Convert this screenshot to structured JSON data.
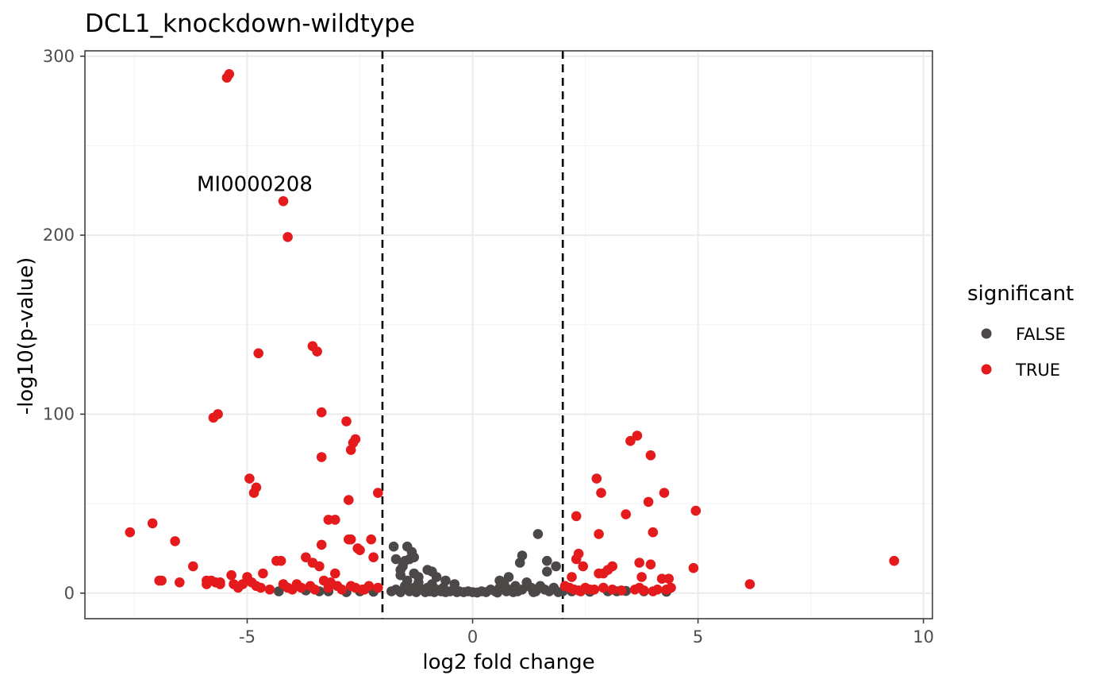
{
  "chart_data": {
    "type": "scatter",
    "title": "DCL1_knockdown-wildtype",
    "xlabel": "log2 fold change",
    "ylabel": "-log10(p-value)",
    "xlim": [
      -8.6,
      10.2
    ],
    "ylim": [
      -14.3,
      303
    ],
    "x_ticks": [
      -5,
      0,
      5,
      10
    ],
    "y_ticks": [
      0,
      100,
      200,
      300
    ],
    "grid": true,
    "vlines": [
      -2,
      2
    ],
    "legend": {
      "title": "significant",
      "position": "right",
      "entries": [
        {
          "label": "FALSE",
          "color": "#4d4848"
        },
        {
          "label": "TRUE",
          "color": "#e41a1c"
        }
      ]
    },
    "annotations": [
      {
        "text": "MI0000208",
        "x": -4.2,
        "y": 219
      }
    ],
    "series": [
      {
        "name": "FALSE",
        "color": "#4d4848",
        "points": [
          [
            -1.8,
            1
          ],
          [
            -1.7,
            2
          ],
          [
            -1.6,
            0.5
          ],
          [
            -1.5,
            4
          ],
          [
            -1.45,
            7
          ],
          [
            -1.4,
            1
          ],
          [
            -1.3,
            3
          ],
          [
            -1.25,
            0.5
          ],
          [
            -1.2,
            6
          ],
          [
            -1.1,
            2
          ],
          [
            -1.05,
            0.5
          ],
          [
            -1.0,
            3
          ],
          [
            -0.95,
            1
          ],
          [
            -0.9,
            5
          ],
          [
            -0.85,
            0.5
          ],
          [
            -0.8,
            2
          ],
          [
            -0.7,
            1
          ],
          [
            -0.65,
            3
          ],
          [
            -0.6,
            0.5
          ],
          [
            -0.5,
            1
          ],
          [
            -0.4,
            2
          ],
          [
            -0.35,
            0.5
          ],
          [
            -0.3,
            1
          ],
          [
            -0.2,
            0.5
          ],
          [
            -0.1,
            1
          ],
          [
            0,
            0.5
          ],
          [
            0.1,
            0.3
          ],
          [
            0.2,
            1
          ],
          [
            0.3,
            0.5
          ],
          [
            0.4,
            2
          ],
          [
            0.5,
            1
          ],
          [
            0.55,
            0.3
          ],
          [
            0.6,
            3
          ],
          [
            0.7,
            5
          ],
          [
            0.75,
            1
          ],
          [
            0.8,
            2
          ],
          [
            0.9,
            0.5
          ],
          [
            0.95,
            4
          ],
          [
            1.0,
            1
          ],
          [
            1.1,
            2
          ],
          [
            1.2,
            6
          ],
          [
            1.3,
            3
          ],
          [
            1.35,
            0.5
          ],
          [
            1.4,
            1
          ],
          [
            1.5,
            4
          ],
          [
            1.6,
            2
          ],
          [
            1.7,
            1
          ],
          [
            1.8,
            3
          ],
          [
            1.9,
            0.5
          ],
          [
            2.0,
            1
          ],
          [
            -1.45,
            26
          ],
          [
            -1.35,
            23
          ],
          [
            -1.5,
            18
          ],
          [
            -1.4,
            19
          ],
          [
            -1.3,
            20
          ],
          [
            -1.55,
            15
          ],
          [
            -1.6,
            13
          ],
          [
            -1.3,
            11
          ],
          [
            -1.2,
            9
          ],
          [
            -1.0,
            13
          ],
          [
            -0.9,
            12
          ],
          [
            -0.8,
            9
          ],
          [
            -0.6,
            7
          ],
          [
            -0.4,
            5
          ],
          [
            -1.75,
            26
          ],
          [
            -1.7,
            19
          ],
          [
            -1.6,
            10
          ],
          [
            1.1,
            21
          ],
          [
            1.05,
            17
          ],
          [
            0.8,
            9
          ],
          [
            0.6,
            7
          ],
          [
            1.45,
            33
          ],
          [
            1.65,
            18
          ],
          [
            1.85,
            15
          ],
          [
            1.65,
            12
          ],
          [
            -4.3,
            1
          ],
          [
            -3.7,
            1.5
          ],
          [
            -3.4,
            1
          ],
          [
            -3.2,
            1
          ],
          [
            -2.8,
            0.5
          ],
          [
            -2.5,
            1
          ],
          [
            -2.2,
            0.8
          ],
          [
            2.2,
            1
          ],
          [
            2.6,
            0.8
          ],
          [
            3.0,
            1
          ],
          [
            3.4,
            1.2
          ],
          [
            3.8,
            1
          ],
          [
            4.3,
            0.8
          ],
          [
            3.2,
            1
          ]
        ]
      },
      {
        "name": "TRUE",
        "color": "#e41a1c",
        "points": [
          [
            -5.4,
            290
          ],
          [
            -5.45,
            288
          ],
          [
            -4.2,
            219
          ],
          [
            -4.1,
            199
          ],
          [
            -3.55,
            138
          ],
          [
            -3.45,
            135
          ],
          [
            -4.75,
            134
          ],
          [
            -3.35,
            101
          ],
          [
            -5.65,
            100
          ],
          [
            -5.75,
            98
          ],
          [
            -2.8,
            96
          ],
          [
            -2.6,
            86
          ],
          [
            -2.65,
            84
          ],
          [
            -2.7,
            80
          ],
          [
            -3.35,
            76
          ],
          [
            -4.95,
            64
          ],
          [
            -4.8,
            59
          ],
          [
            -4.85,
            56
          ],
          [
            -2.1,
            56
          ],
          [
            -2.75,
            52
          ],
          [
            -3.2,
            41
          ],
          [
            -3.05,
            41
          ],
          [
            -3.35,
            27
          ],
          [
            -7.6,
            34
          ],
          [
            -7.1,
            39
          ],
          [
            -6.6,
            29
          ],
          [
            -2.5,
            24
          ],
          [
            -2.55,
            25
          ],
          [
            -2.7,
            30
          ],
          [
            -2.75,
            30
          ],
          [
            -2.25,
            30
          ],
          [
            -2.2,
            20
          ],
          [
            -3.7,
            20
          ],
          [
            -4.25,
            18
          ],
          [
            -4.35,
            18
          ],
          [
            -3.55,
            17
          ],
          [
            -3.4,
            15
          ],
          [
            -3.05,
            11
          ],
          [
            -6.2,
            15
          ],
          [
            -5.35,
            10
          ],
          [
            -5.0,
            9
          ],
          [
            -4.65,
            11
          ],
          [
            -6.9,
            7
          ],
          [
            -6.5,
            6
          ],
          [
            -5.9,
            7
          ],
          [
            -5.8,
            7
          ],
          [
            -5.7,
            6
          ],
          [
            -5.6,
            6
          ],
          [
            -5.3,
            5
          ],
          [
            -5.1,
            5
          ],
          [
            -4.9,
            6
          ],
          [
            -4.8,
            4
          ],
          [
            -4.2,
            5
          ],
          [
            -3.9,
            5
          ],
          [
            -3.6,
            4
          ],
          [
            -3.3,
            7
          ],
          [
            -3.0,
            4
          ],
          [
            -2.6,
            3
          ],
          [
            -2.3,
            4
          ],
          [
            -5.9,
            5
          ],
          [
            -5.2,
            3
          ],
          [
            -4.7,
            3
          ],
          [
            -4.5,
            2
          ],
          [
            -4.0,
            2
          ],
          [
            -3.8,
            3
          ],
          [
            -3.5,
            2
          ],
          [
            -3.2,
            3
          ],
          [
            -2.9,
            2
          ],
          [
            -2.4,
            2
          ],
          [
            -2.1,
            3
          ],
          [
            -6.95,
            7
          ],
          [
            -5.6,
            5
          ],
          [
            -4.1,
            3
          ],
          [
            -3.15,
            6
          ],
          [
            -2.7,
            4
          ],
          [
            -2.45,
            2
          ],
          [
            3.65,
            88
          ],
          [
            3.5,
            85
          ],
          [
            3.95,
            77
          ],
          [
            2.75,
            64
          ],
          [
            2.85,
            56
          ],
          [
            4.25,
            56
          ],
          [
            3.9,
            51
          ],
          [
            4.95,
            46
          ],
          [
            2.3,
            43
          ],
          [
            3.4,
            44
          ],
          [
            4.0,
            34
          ],
          [
            2.8,
            33
          ],
          [
            2.35,
            22
          ],
          [
            2.3,
            19
          ],
          [
            3.1,
            15
          ],
          [
            3.0,
            13
          ],
          [
            3.7,
            17
          ],
          [
            3.95,
            16
          ],
          [
            4.9,
            14
          ],
          [
            2.45,
            15
          ],
          [
            2.2,
            9
          ],
          [
            2.8,
            11
          ],
          [
            2.9,
            11
          ],
          [
            3.75,
            9
          ],
          [
            4.2,
            8
          ],
          [
            4.35,
            8
          ],
          [
            9.35,
            18
          ],
          [
            6.15,
            5
          ],
          [
            2.15,
            3
          ],
          [
            2.25,
            2
          ],
          [
            2.5,
            3
          ],
          [
            2.7,
            2
          ],
          [
            2.9,
            3
          ],
          [
            3.1,
            2
          ],
          [
            3.3,
            1.5
          ],
          [
            3.6,
            2
          ],
          [
            3.8,
            1.5
          ],
          [
            4.0,
            1
          ],
          [
            4.3,
            2
          ],
          [
            4.4,
            3
          ],
          [
            2.4,
            1
          ],
          [
            2.6,
            2
          ],
          [
            3.7,
            3
          ],
          [
            4.1,
            2
          ],
          [
            2.05,
            4
          ],
          [
            2.35,
            1.5
          ]
        ]
      }
    ]
  }
}
